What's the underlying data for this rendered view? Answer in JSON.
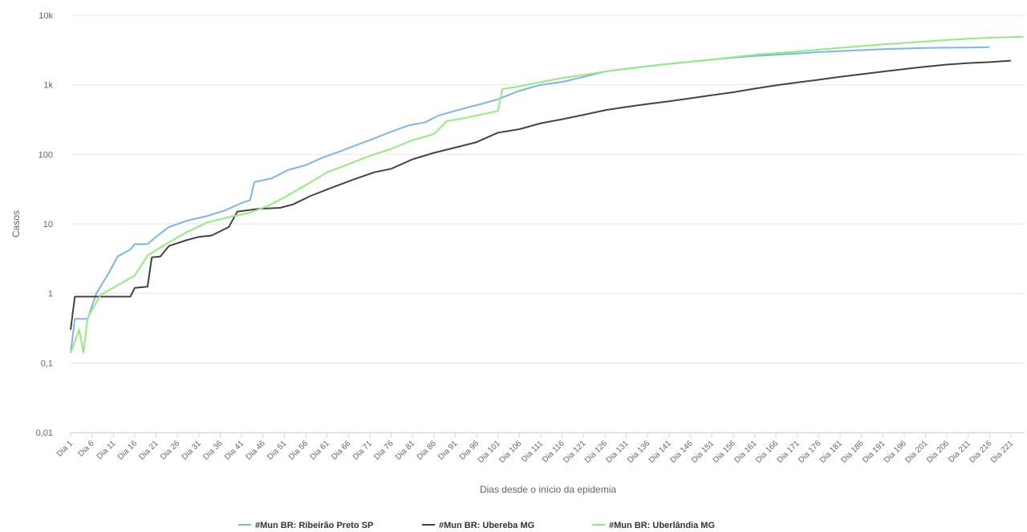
{
  "chart_data": {
    "type": "line",
    "title": "",
    "xlabel": "Dias desde o início da epidemia",
    "ylabel": "Casos",
    "y_scale": "log",
    "ylim": [
      0.01,
      10000
    ],
    "y_ticks": [
      0.01,
      0.1,
      1,
      10,
      100,
      1000,
      10000
    ],
    "y_tick_labels": [
      "0,01",
      "0,1",
      "1",
      "10",
      "100",
      "1k",
      "10k"
    ],
    "x_range": [
      1,
      224
    ],
    "x_tick_labels": [
      "Dia 1",
      "Dia 6",
      "Dia 11",
      "Dia 16",
      "Dia 21",
      "Dia 26",
      "Dia 31",
      "Dia 36",
      "Dia 41",
      "Dia 46",
      "Dia 51",
      "Dia 56",
      "Dia 61",
      "Dia 66",
      "Dia 71",
      "Dia 76",
      "Dia 81",
      "Dia 86",
      "Dia 91",
      "Dia 96",
      "Dia 101",
      "Dia 106",
      "Dia 111",
      "Dia 116",
      "Dia 121",
      "Dia 126",
      "Dia 131",
      "Dia 136",
      "Dia 141",
      "Dia 146",
      "Dia 151",
      "Dia 156",
      "Dia 161",
      "Dia 166",
      "Dia 171",
      "Dia 176",
      "Dia 181",
      "Dia 186",
      "Dia 191",
      "Dia 196",
      "Dia 201",
      "Dia 206",
      "Dia 211",
      "Dia 216",
      "Dia 221"
    ],
    "grid": true,
    "legend_position": "bottom-center",
    "series": [
      {
        "name": "#Mun BR: Ribeirão Preto SP",
        "color": "#7cb5ec",
        "points": [
          [
            1,
            0.14
          ],
          [
            2,
            0.43
          ],
          [
            5,
            0.43
          ],
          [
            7,
            1
          ],
          [
            10,
            2
          ],
          [
            12,
            3.4
          ],
          [
            15,
            4.3
          ],
          [
            16,
            5.1
          ],
          [
            19,
            5.1
          ],
          [
            21,
            6.5
          ],
          [
            24,
            9
          ],
          [
            28,
            11
          ],
          [
            33,
            13
          ],
          [
            37,
            15.5
          ],
          [
            41,
            20
          ],
          [
            43,
            22
          ],
          [
            44,
            40
          ],
          [
            48,
            45
          ],
          [
            52,
            60
          ],
          [
            56,
            70
          ],
          [
            60,
            90
          ],
          [
            64,
            110
          ],
          [
            67,
            130
          ],
          [
            71,
            160
          ],
          [
            75,
            200
          ],
          [
            80,
            260
          ],
          [
            84,
            290
          ],
          [
            87,
            360
          ],
          [
            92,
            440
          ],
          [
            97,
            530
          ],
          [
            101,
            620
          ],
          [
            106,
            820
          ],
          [
            111,
            1000
          ],
          [
            116,
            1100
          ],
          [
            121,
            1300
          ],
          [
            126,
            1550
          ],
          [
            131,
            1700
          ],
          [
            136,
            1850
          ],
          [
            141,
            2000
          ],
          [
            146,
            2150
          ],
          [
            151,
            2300
          ],
          [
            156,
            2450
          ],
          [
            161,
            2600
          ],
          [
            166,
            2700
          ],
          [
            171,
            2820
          ],
          [
            176,
            2950
          ],
          [
            181,
            3050
          ],
          [
            186,
            3150
          ],
          [
            191,
            3250
          ],
          [
            196,
            3320
          ],
          [
            201,
            3380
          ],
          [
            206,
            3420
          ],
          [
            211,
            3440
          ],
          [
            216,
            3480
          ]
        ]
      },
      {
        "name": "#Mun BR: Ubereba MG",
        "color": "#434348",
        "points": [
          [
            1,
            0.3
          ],
          [
            2,
            0.9
          ],
          [
            6,
            0.9
          ],
          [
            13,
            0.9
          ],
          [
            15,
            0.9
          ],
          [
            16,
            1.2
          ],
          [
            19,
            1.25
          ],
          [
            20,
            3.3
          ],
          [
            22,
            3.4
          ],
          [
            24,
            4.8
          ],
          [
            28,
            5.8
          ],
          [
            31,
            6.5
          ],
          [
            34,
            6.8
          ],
          [
            38,
            9
          ],
          [
            40,
            15
          ],
          [
            45,
            16.5
          ],
          [
            50,
            17
          ],
          [
            53,
            19
          ],
          [
            57,
            25
          ],
          [
            62,
            33
          ],
          [
            67,
            43
          ],
          [
            72,
            55
          ],
          [
            76,
            62
          ],
          [
            81,
            85
          ],
          [
            86,
            105
          ],
          [
            91,
            125
          ],
          [
            96,
            150
          ],
          [
            101,
            205
          ],
          [
            106,
            230
          ],
          [
            111,
            280
          ],
          [
            116,
            320
          ],
          [
            121,
            370
          ],
          [
            126,
            430
          ],
          [
            131,
            480
          ],
          [
            136,
            530
          ],
          [
            141,
            580
          ],
          [
            146,
            640
          ],
          [
            151,
            710
          ],
          [
            156,
            780
          ],
          [
            161,
            880
          ],
          [
            166,
            980
          ],
          [
            171,
            1080
          ],
          [
            176,
            1180
          ],
          [
            181,
            1300
          ],
          [
            186,
            1420
          ],
          [
            191,
            1550
          ],
          [
            196,
            1680
          ],
          [
            201,
            1820
          ],
          [
            206,
            1950
          ],
          [
            211,
            2050
          ],
          [
            216,
            2120
          ],
          [
            221,
            2220
          ]
        ]
      },
      {
        "name": "#Mun BR: Uberlândia MG",
        "color": "#90ed7d",
        "points": [
          [
            1,
            0.14
          ],
          [
            3,
            0.3
          ],
          [
            4,
            0.14
          ],
          [
            5,
            0.45
          ],
          [
            8,
            0.95
          ],
          [
            16,
            1.8
          ],
          [
            19,
            3.5
          ],
          [
            23,
            5
          ],
          [
            28,
            7.5
          ],
          [
            33,
            10.5
          ],
          [
            38,
            12.5
          ],
          [
            43,
            14.5
          ],
          [
            47,
            18
          ],
          [
            51,
            24
          ],
          [
            56,
            36
          ],
          [
            61,
            55
          ],
          [
            66,
            72
          ],
          [
            71,
            95
          ],
          [
            76,
            120
          ],
          [
            81,
            160
          ],
          [
            86,
            195
          ],
          [
            89,
            300
          ],
          [
            94,
            340
          ],
          [
            101,
            420
          ],
          [
            102,
            870
          ],
          [
            106,
            950
          ],
          [
            111,
            1100
          ],
          [
            116,
            1250
          ],
          [
            121,
            1380
          ],
          [
            126,
            1550
          ],
          [
            131,
            1700
          ],
          [
            136,
            1850
          ],
          [
            141,
            2000
          ],
          [
            146,
            2150
          ],
          [
            151,
            2300
          ],
          [
            156,
            2500
          ],
          [
            161,
            2700
          ],
          [
            166,
            2850
          ],
          [
            171,
            3000
          ],
          [
            176,
            3200
          ],
          [
            181,
            3400
          ],
          [
            186,
            3600
          ],
          [
            191,
            3800
          ],
          [
            196,
            4000
          ],
          [
            201,
            4200
          ],
          [
            206,
            4400
          ],
          [
            211,
            4600
          ],
          [
            216,
            4750
          ],
          [
            221,
            4850
          ],
          [
            224,
            4900
          ]
        ]
      }
    ]
  }
}
